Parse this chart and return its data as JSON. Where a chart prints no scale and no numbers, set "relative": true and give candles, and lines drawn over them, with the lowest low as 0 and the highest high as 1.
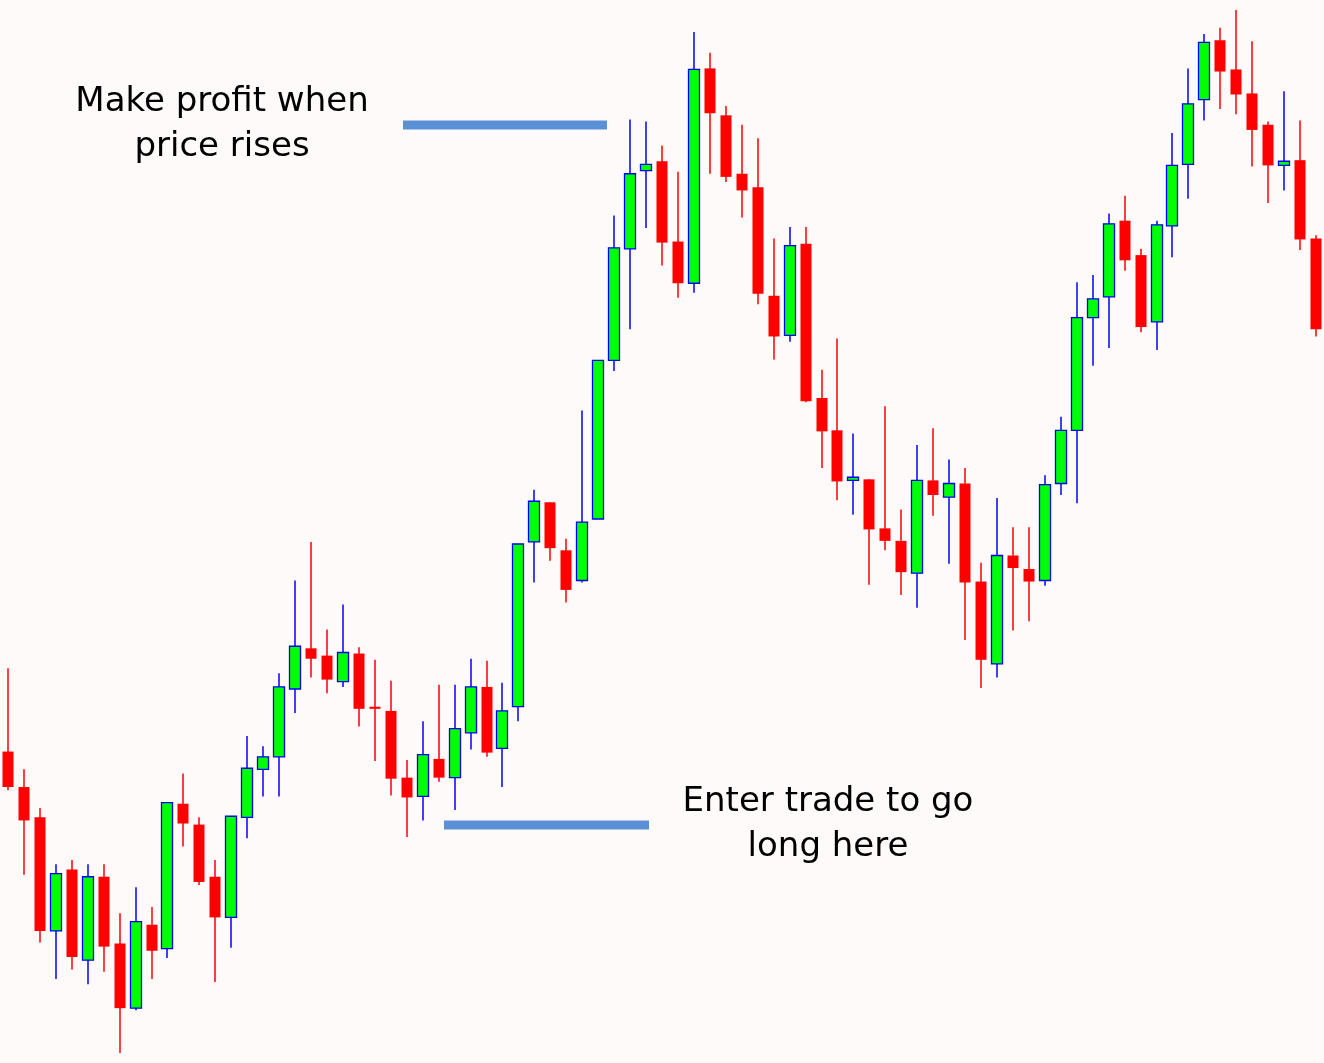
{
  "chart_data": {
    "type": "candlestick",
    "relative": true,
    "categories": [
      null,
      null,
      null,
      null,
      null,
      null,
      null,
      null,
      null,
      null,
      null,
      null,
      null,
      null,
      null,
      null,
      null,
      null,
      null,
      null,
      null,
      null,
      null,
      null,
      null,
      null,
      null,
      null,
      null,
      null,
      null,
      null,
      null,
      null,
      null,
      null,
      null,
      null,
      null,
      null,
      null,
      null,
      null,
      null,
      null,
      null,
      null,
      null,
      null,
      null,
      null,
      null,
      null,
      null,
      null,
      null,
      null,
      null,
      null,
      null,
      null,
      null,
      null,
      null,
      null,
      null,
      null,
      null,
      null,
      null,
      null,
      null,
      null,
      null,
      null,
      null,
      null,
      null,
      null,
      null,
      null,
      null,
      null
    ],
    "ohlc": [
      [
        0.289,
        0.369,
        0.252,
        0.255
      ],
      [
        0.255,
        0.272,
        0.171,
        0.223
      ],
      [
        0.226,
        0.235,
        0.106,
        0.117
      ],
      [
        0.117,
        0.181,
        0.071,
        0.172
      ],
      [
        0.176,
        0.185,
        0.08,
        0.092
      ],
      [
        0.089,
        0.181,
        0.066,
        0.169
      ],
      [
        0.169,
        0.181,
        0.078,
        0.102
      ],
      [
        0.105,
        0.134,
        0,
        0.043
      ],
      [
        0.043,
        0.159,
        0.041,
        0.126
      ],
      [
        0.123,
        0.14,
        0.071,
        0.098
      ],
      [
        0.1,
        0.24,
        0.091,
        0.24
      ],
      [
        0.239,
        0.268,
        0.198,
        0.22
      ],
      [
        0.219,
        0.226,
        0.161,
        0.164
      ],
      [
        0.169,
        0.185,
        0.068,
        0.13
      ],
      [
        0.13,
        0.227,
        0.101,
        0.227
      ],
      [
        0.226,
        0.304,
        0.206,
        0.273
      ],
      [
        0.272,
        0.294,
        0.246,
        0.284
      ],
      [
        0.284,
        0.364,
        0.246,
        0.351
      ],
      [
        0.349,
        0.453,
        0.326,
        0.39
      ],
      [
        0.388,
        0.49,
        0.36,
        0.378
      ],
      [
        0.381,
        0.406,
        0.345,
        0.358
      ],
      [
        0.356,
        0.43,
        0.351,
        0.384
      ],
      [
        0.383,
        0.389,
        0.313,
        0.33
      ],
      [
        0.332,
        0.377,
        0.28,
        0.33
      ],
      [
        0.328,
        0.357,
        0.247,
        0.263
      ],
      [
        0.264,
        0.281,
        0.207,
        0.245
      ],
      [
        0.246,
        0.318,
        0.223,
        0.286
      ],
      [
        0.282,
        0.353,
        0.26,
        0.264
      ],
      [
        0.264,
        0.353,
        0.233,
        0.311
      ],
      [
        0.307,
        0.378,
        0.291,
        0.351
      ],
      [
        0.351,
        0.376,
        0.284,
        0.288
      ],
      [
        0.292,
        0.355,
        0.255,
        0.328
      ],
      [
        0.332,
        0.488,
        0.318,
        0.488
      ],
      [
        0.49,
        0.54,
        0.451,
        0.529
      ],
      [
        0.528,
        0.528,
        0.472,
        0.484
      ],
      [
        0.482,
        0.493,
        0.432,
        0.444
      ],
      [
        0.453,
        0.616,
        0.451,
        0.509
      ],
      [
        0.512,
        0.664,
        0.512,
        0.664
      ],
      [
        0.664,
        0.803,
        0.654,
        0.772
      ],
      [
        0.771,
        0.895,
        0.694,
        0.843
      ],
      [
        0.846,
        0.893,
        0.791,
        0.852
      ],
      [
        0.855,
        0.87,
        0.755,
        0.777
      ],
      [
        0.778,
        0.845,
        0.724,
        0.738
      ],
      [
        0.738,
        0.979,
        0.729,
        0.943
      ],
      [
        0.944,
        0.959,
        0.843,
        0.901
      ],
      [
        0.899,
        0.908,
        0.835,
        0.84
      ],
      [
        0.843,
        0.89,
        0.801,
        0.827
      ],
      [
        0.83,
        0.877,
        0.718,
        0.728
      ],
      [
        0.726,
        0.781,
        0.665,
        0.687
      ],
      [
        0.688,
        0.792,
        0.682,
        0.774
      ],
      [
        0.776,
        0.792,
        0.624,
        0.625
      ],
      [
        0.628,
        0.655,
        0.561,
        0.596
      ],
      [
        0.597,
        0.685,
        0.53,
        0.548
      ],
      [
        0.549,
        0.594,
        0.516,
        0.552
      ],
      [
        0.55,
        0.55,
        0.449,
        0.502
      ],
      [
        0.503,
        0.62,
        0.482,
        0.491
      ],
      [
        0.491,
        0.521,
        0.439,
        0.461
      ],
      [
        0.46,
        0.583,
        0.427,
        0.549
      ],
      [
        0.549,
        0.599,
        0.515,
        0.535
      ],
      [
        0.533,
        0.569,
        0.469,
        0.546
      ],
      [
        0.546,
        0.561,
        0.396,
        0.451
      ],
      [
        0.452,
        0.47,
        0.35,
        0.377
      ],
      [
        0.373,
        0.532,
        0.36,
        0.477
      ],
      [
        0.477,
        0.504,
        0.405,
        0.465
      ],
      [
        0.464,
        0.504,
        0.414,
        0.452
      ],
      [
        0.453,
        0.554,
        0.448,
        0.545
      ],
      [
        0.546,
        0.61,
        0.535,
        0.597
      ],
      [
        0.597,
        0.739,
        0.527,
        0.705
      ],
      [
        0.705,
        0.746,
        0.659,
        0.723
      ],
      [
        0.725,
        0.805,
        0.676,
        0.795
      ],
      [
        0.798,
        0.822,
        0.75,
        0.76
      ],
      [
        0.765,
        0.771,
        0.691,
        0.696
      ],
      [
        0.701,
        0.798,
        0.674,
        0.794
      ],
      [
        0.793,
        0.882,
        0.763,
        0.851
      ],
      [
        0.852,
        0.944,
        0.819,
        0.91
      ],
      [
        0.914,
        0.977,
        0.894,
        0.969
      ],
      [
        0.971,
        0.983,
        0.905,
        0.941
      ],
      [
        0.943,
        1,
        0.9,
        0.919
      ],
      [
        0.92,
        0.97,
        0.85,
        0.885
      ],
      [
        0.89,
        0.893,
        0.815,
        0.851
      ],
      [
        0.851,
        0.922,
        0.827,
        0.855
      ],
      [
        0.856,
        0.894,
        0.77,
        0.78
      ],
      [
        0.781,
        0.784,
        0.687,
        0.694
      ]
    ],
    "colors": [
      "#ff0000",
      "#ff0000",
      "#ff0000",
      "#00ff00",
      "#ff0000",
      "#00ff00",
      "#ff0000",
      "#ff0000",
      "#00ff00",
      "#ff0000",
      "#00ff00",
      "#ff0000",
      "#ff0000",
      "#ff0000",
      "#00ff00",
      "#00ff00",
      "#00ff00",
      "#00ff00",
      "#00ff00",
      "#ff0000",
      "#ff0000",
      "#00ff00",
      "#ff0000",
      "#ff0000",
      "#ff0000",
      "#ff0000",
      "#00ff00",
      "#ff0000",
      "#00ff00",
      "#00ff00",
      "#ff0000",
      "#00ff00",
      "#00ff00",
      "#00ff00",
      "#ff0000",
      "#ff0000",
      "#00ff00",
      "#00ff00",
      "#00ff00",
      "#00ff00",
      "#00ff00",
      "#ff0000",
      "#ff0000",
      "#00ff00",
      "#ff0000",
      "#ff0000",
      "#ff0000",
      "#ff0000",
      "#ff0000",
      "#00ff00",
      "#ff0000",
      "#ff0000",
      "#ff0000",
      "#00ff00",
      "#ff0000",
      "#ff0000",
      "#ff0000",
      "#00ff00",
      "#ff0000",
      "#00ff00",
      "#ff0000",
      "#ff0000",
      "#00ff00",
      "#ff0000",
      "#ff0000",
      "#00ff00",
      "#00ff00",
      "#00ff00",
      "#00ff00",
      "#00ff00",
      "#ff0000",
      "#ff0000",
      "#00ff00",
      "#00ff00",
      "#00ff00",
      "#00ff00",
      "#ff0000",
      "#ff0000",
      "#ff0000",
      "#ff0000",
      "#00ff00",
      "#ff0000",
      "#ff0000"
    ],
    "annotations": [
      "Make profit when price rises",
      "Enter trade to go long here"
    ]
  }
}
